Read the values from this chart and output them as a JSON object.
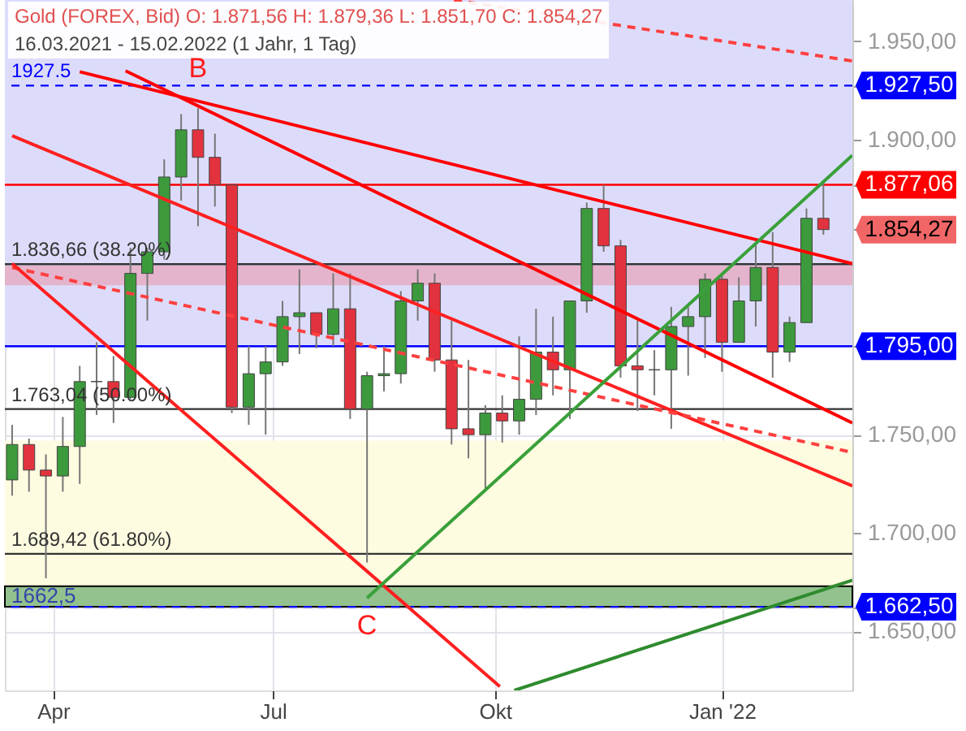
{
  "chart_data": {
    "type": "candlestick",
    "title": "Gold (FOREX, Bid)  O: 1.871,56  H: 1.879,36  L: 1.851,70  C: 1.854,27",
    "subtitle": "16.03.2021 - 15.02.2022   (1 Jahr, 1 Tag)",
    "x": [
      "2021-03-15",
      "2021-03-22",
      "2021-03-29",
      "2021-04-05",
      "2021-04-12",
      "2021-04-19",
      "2021-04-26",
      "2021-05-03",
      "2021-05-10",
      "2021-05-17",
      "2021-05-24",
      "2021-05-31",
      "2021-06-07",
      "2021-06-14",
      "2021-06-21",
      "2021-06-28",
      "2021-07-05",
      "2021-07-12",
      "2021-07-19",
      "2021-07-26",
      "2021-08-02",
      "2021-08-09",
      "2021-08-16",
      "2021-08-23",
      "2021-08-30",
      "2021-09-06",
      "2021-09-13",
      "2021-09-20",
      "2021-09-27",
      "2021-10-04",
      "2021-10-11",
      "2021-10-18",
      "2021-10-25",
      "2021-11-01",
      "2021-11-08",
      "2021-11-15",
      "2021-11-22",
      "2021-11-29",
      "2021-12-06",
      "2021-12-13",
      "2021-12-20",
      "2021-12-27",
      "2022-01-03",
      "2022-01-10",
      "2022-01-17",
      "2022-01-24",
      "2022-01-31",
      "2022-02-07",
      "2022-02-14"
    ],
    "ohlc": [
      [
        1727,
        1755,
        1719,
        1745
      ],
      [
        1745,
        1748,
        1721,
        1732
      ],
      [
        1732,
        1740,
        1677,
        1729
      ],
      [
        1729,
        1759,
        1721,
        1744
      ],
      [
        1744,
        1785,
        1725,
        1777
      ],
      [
        1777,
        1797,
        1760,
        1777
      ],
      [
        1777,
        1790,
        1756,
        1769
      ],
      [
        1769,
        1845,
        1768,
        1832
      ],
      [
        1832,
        1845,
        1808,
        1843
      ],
      [
        1843,
        1890,
        1839,
        1881
      ],
      [
        1881,
        1913,
        1869,
        1905
      ],
      [
        1905,
        1916,
        1856,
        1891
      ],
      [
        1891,
        1903,
        1866,
        1877
      ],
      [
        1877,
        1877,
        1761,
        1764
      ],
      [
        1764,
        1795,
        1755,
        1781
      ],
      [
        1781,
        1795,
        1750,
        1787
      ],
      [
        1787,
        1818,
        1785,
        1810
      ],
      [
        1810,
        1834,
        1791,
        1812
      ],
      [
        1812,
        1812,
        1794,
        1801
      ],
      [
        1801,
        1832,
        1795,
        1814
      ],
      [
        1814,
        1832,
        1758,
        1763
      ],
      [
        1763,
        1782,
        1685,
        1780
      ],
      [
        1780,
        1795,
        1772,
        1781
      ],
      [
        1781,
        1823,
        1776,
        1818
      ],
      [
        1818,
        1834,
        1808,
        1827
      ],
      [
        1827,
        1832,
        1782,
        1788
      ],
      [
        1788,
        1808,
        1745,
        1753
      ],
      [
        1753,
        1788,
        1738,
        1750
      ],
      [
        1750,
        1765,
        1721,
        1761
      ],
      [
        1761,
        1770,
        1746,
        1757
      ],
      [
        1757,
        1800,
        1750,
        1768
      ],
      [
        1768,
        1814,
        1760,
        1792
      ],
      [
        1792,
        1810,
        1770,
        1783
      ],
      [
        1783,
        1818,
        1758,
        1818
      ],
      [
        1818,
        1868,
        1812,
        1865
      ],
      [
        1865,
        1877,
        1843,
        1846
      ],
      [
        1846,
        1849,
        1779,
        1785
      ],
      [
        1785,
        1808,
        1762,
        1783
      ],
      [
        1783,
        1793,
        1770,
        1783
      ],
      [
        1783,
        1815,
        1753,
        1805
      ],
      [
        1805,
        1815,
        1780,
        1810
      ],
      [
        1810,
        1832,
        1789,
        1829
      ],
      [
        1829,
        1831,
        1782,
        1797
      ],
      [
        1797,
        1830,
        1797,
        1818
      ],
      [
        1818,
        1848,
        1805,
        1835
      ],
      [
        1835,
        1853,
        1779,
        1792
      ],
      [
        1792,
        1810,
        1787,
        1807
      ],
      [
        1807,
        1865,
        1807,
        1860
      ],
      [
        1860,
        1879.36,
        1851.7,
        1854.27
      ]
    ],
    "series": [
      {
        "type": "line",
        "color": "#ff0000",
        "x": [
          "2021-05-01",
          "2022-02-26"
        ],
        "values": [
          1935,
          1756
        ]
      },
      {
        "type": "line",
        "color": "#ff0000",
        "x": [
          "2021-04-12",
          "2022-02-26"
        ],
        "values": [
          1934.5,
          1837
        ]
      },
      {
        "type": "line",
        "color": "#ff2020",
        "x": [
          "2021-03-15",
          "2022-02-26"
        ],
        "values": [
          1902,
          1724
        ]
      },
      {
        "type": "line",
        "color": "#ff4040",
        "line_style": "dashed",
        "x": [
          "2021-03-15",
          "2022-02-26"
        ],
        "values": [
          1835,
          1741
        ]
      },
      {
        "type": "line",
        "color": "#ff4040",
        "line_style": "dashed",
        "x": [
          "2021-09-14",
          "2022-02-26"
        ],
        "values": [
          1971,
          1940
        ]
      },
      {
        "type": "line",
        "color": "#ff2020",
        "x": [
          "2021-03-15",
          "2021-10-03"
        ],
        "values": [
          1837,
          1622
        ]
      },
      {
        "type": "line",
        "color": "#2e8b2e",
        "x": [
          "2021-10-09",
          "2022-02-26"
        ],
        "values": [
          1620,
          1676
        ]
      },
      {
        "type": "line",
        "color": "#3aa03a",
        "x": [
          "2021-08-09",
          "2022-02-26"
        ],
        "values": [
          1667,
          1892
        ]
      }
    ],
    "xlim": [
      "2021-03-12",
      "2022-02-26"
    ],
    "xticks": [
      {
        "value": "2021-04-01",
        "label": "Apr"
      },
      {
        "value": "2021-07-01",
        "label": "Jul"
      },
      {
        "value": "2021-10-01",
        "label": "Okt"
      },
      {
        "value": "2022-01-03",
        "label": "Jan '22"
      }
    ],
    "ylim": [
      1620,
      1971
    ],
    "yticks": [
      {
        "value": 1650,
        "label": "1.650,00"
      },
      {
        "value": 1662.5,
        "label": "1.662,50"
      },
      {
        "value": 1700,
        "label": "1.700,00"
      },
      {
        "value": 1750,
        "label": "1.750,00"
      },
      {
        "value": 1795,
        "label": "1.795,00"
      },
      {
        "value": 1854.27,
        "label": "1.854,27"
      },
      {
        "value": 1877.06,
        "label": "1.877,06"
      },
      {
        "value": 1900,
        "label": "1.900,00"
      },
      {
        "value": 1927.5,
        "label": "1.927,50"
      },
      {
        "value": 1950,
        "label": "1.950,00"
      }
    ],
    "grid": true,
    "bands": [
      {
        "axis": "y",
        "from": 1795,
        "to": 1971,
        "color": "#dcdcfa"
      },
      {
        "axis": "y",
        "from": 1667,
        "to": 1747,
        "color": "#fdfbe0"
      },
      {
        "axis": "y",
        "from": 1826,
        "to": 1836,
        "color": "#e4b4cc"
      },
      {
        "axis": "y",
        "from": 1662.5,
        "to": 1673,
        "color": "#93c28e",
        "label": "1662,5"
      }
    ],
    "ref_lines": [
      {
        "axis": "y",
        "value": 1927.5,
        "label": "1927.5",
        "color": "#0000ff",
        "line_style": "dashed"
      },
      {
        "axis": "y",
        "value": 1877.06,
        "color": "#ff0000"
      },
      {
        "axis": "y",
        "value": 1795,
        "color": "#0000ff"
      },
      {
        "axis": "y",
        "value": 1662.5,
        "color": "#0000ff",
        "line_style": "dashed"
      },
      {
        "axis": "y",
        "value": 1836.66,
        "label": "1.836,66 (38.20%)",
        "color": "#333333"
      },
      {
        "axis": "y",
        "value": 1763.04,
        "label": "1.763,04 (50.00%)",
        "color": "#333333"
      },
      {
        "axis": "y",
        "value": 1689.42,
        "label": "1.689,42 (61.80%)",
        "color": "#333333"
      }
    ],
    "annotations": [
      {
        "text": "B",
        "x": "2021-05-31",
        "y": 1927.5
      },
      {
        "text": "C",
        "x": "2021-08-09",
        "y": 1662.5
      }
    ]
  }
}
